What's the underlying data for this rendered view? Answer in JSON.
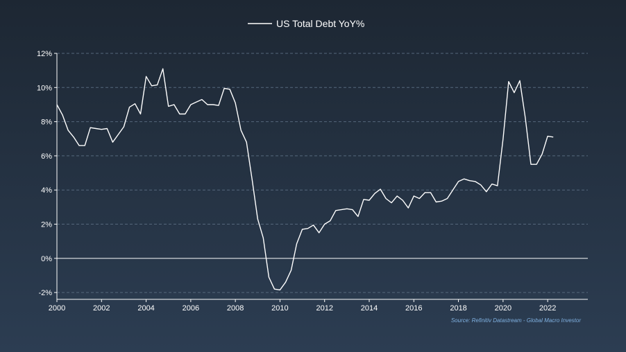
{
  "chart_data": {
    "type": "line",
    "legend": {
      "position": "top-center"
    },
    "source": "Source: Refinitiv Datastream - Global Macro Investor",
    "ylim": [
      -2.4,
      12
    ],
    "xlim": [
      2000,
      2023.8
    ],
    "yticks": [
      -2,
      0,
      2,
      4,
      6,
      8,
      10,
      12
    ],
    "ytick_labels": [
      "-2%",
      "0%",
      "2%",
      "4%",
      "6%",
      "8%",
      "10%",
      "12%"
    ],
    "xticks": [
      2000,
      2002,
      2004,
      2006,
      2008,
      2010,
      2012,
      2014,
      2016,
      2018,
      2020,
      2022
    ],
    "xtick_labels": [
      "2000",
      "2002",
      "2004",
      "2006",
      "2008",
      "2010",
      "2012",
      "2014",
      "2016",
      "2018",
      "2020",
      "2022"
    ],
    "grid": "horizontal-dashed",
    "colors": {
      "line": "#ffffff",
      "grid": "#56687c",
      "zero_line": "#ffffff",
      "source": "#7fb0e0"
    },
    "series": [
      {
        "name": "US Total Debt YoY%",
        "x": [
          2000.0,
          2000.25,
          2000.5,
          2000.75,
          2001.0,
          2001.25,
          2001.5,
          2001.75,
          2002.0,
          2002.25,
          2002.5,
          2002.75,
          2003.0,
          2003.25,
          2003.5,
          2003.75,
          2004.0,
          2004.25,
          2004.5,
          2004.75,
          2005.0,
          2005.25,
          2005.5,
          2005.75,
          2006.0,
          2006.25,
          2006.5,
          2006.75,
          2007.0,
          2007.25,
          2007.5,
          2007.75,
          2008.0,
          2008.25,
          2008.5,
          2008.75,
          2009.0,
          2009.25,
          2009.5,
          2009.75,
          2010.0,
          2010.25,
          2010.5,
          2010.75,
          2011.0,
          2011.25,
          2011.5,
          2011.75,
          2012.0,
          2012.25,
          2012.5,
          2012.75,
          2013.0,
          2013.25,
          2013.5,
          2013.75,
          2014.0,
          2014.25,
          2014.5,
          2014.75,
          2015.0,
          2015.25,
          2015.5,
          2015.75,
          2016.0,
          2016.25,
          2016.5,
          2016.75,
          2017.0,
          2017.25,
          2017.5,
          2017.75,
          2018.0,
          2018.25,
          2018.5,
          2018.75,
          2019.0,
          2019.25,
          2019.5,
          2019.75,
          2020.0,
          2020.25,
          2020.5,
          2020.75,
          2021.0,
          2021.25,
          2021.5,
          2021.75,
          2022.0,
          2022.25
        ],
        "values": [
          9.0,
          8.4,
          7.5,
          7.1,
          6.6,
          6.6,
          7.65,
          7.6,
          7.55,
          7.6,
          6.8,
          7.25,
          7.7,
          8.85,
          9.05,
          8.45,
          10.65,
          10.1,
          10.15,
          11.1,
          8.9,
          9.0,
          8.45,
          8.45,
          9.0,
          9.15,
          9.3,
          9.0,
          9.0,
          8.95,
          9.95,
          9.9,
          9.1,
          7.5,
          6.8,
          4.6,
          2.3,
          1.2,
          -1.1,
          -1.8,
          -1.85,
          -1.4,
          -0.7,
          0.85,
          1.7,
          1.75,
          1.95,
          1.5,
          2.0,
          2.2,
          2.8,
          2.85,
          2.9,
          2.85,
          2.45,
          3.45,
          3.4,
          3.8,
          4.05,
          3.5,
          3.25,
          3.65,
          3.4,
          2.95,
          3.65,
          3.5,
          3.85,
          3.85,
          3.3,
          3.35,
          3.5,
          4.0,
          4.5,
          4.65,
          4.55,
          4.5,
          4.3,
          3.9,
          4.35,
          4.25,
          7.0,
          10.35,
          9.7,
          10.4,
          8.2,
          5.5,
          5.5,
          6.1,
          7.15,
          7.1
        ]
      }
    ]
  }
}
